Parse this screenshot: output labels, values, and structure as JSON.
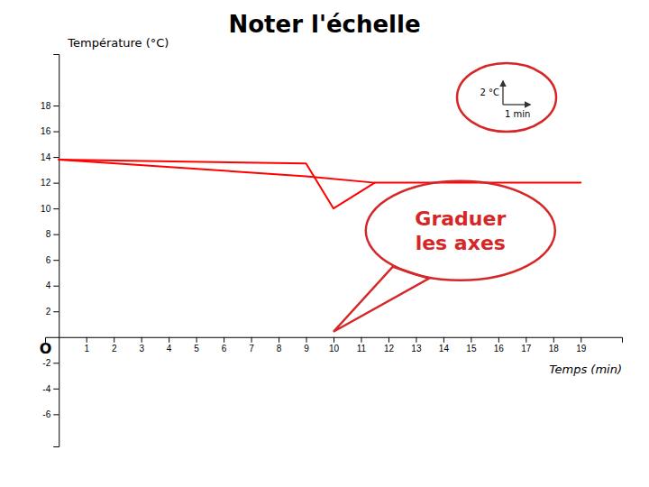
{
  "chart_data": {
    "type": "line",
    "title": "Noter l'échelle",
    "xlabel": "Temps (min)",
    "ylabel": "Température (°C)",
    "annotations": [
      "O",
      "Graduer\nles axes",
      "2 °C",
      "1 min"
    ],
    "series": [
      {
        "color": "#ff0000",
        "x": [
          0,
          9.0,
          10.0,
          11.5,
          19.0
        ],
        "values": [
          13.8,
          13.5,
          10.0,
          12.0,
          12.0
        ]
      },
      {
        "color": "#ff0000",
        "x": [
          0,
          9.0,
          11.5
        ],
        "values": [
          13.8,
          12.5,
          12.0
        ]
      }
    ],
    "xlim": [
      -0.5,
      20.5
    ],
    "ylim": [
      -8.5,
      22.0
    ],
    "xticks": [
      1,
      2,
      3,
      4,
      5,
      6,
      7,
      8,
      9,
      10,
      11,
      12,
      13,
      14,
      15,
      16,
      17,
      18,
      19
    ],
    "yticks": [
      -6,
      -4,
      -2,
      2,
      4,
      6,
      8,
      10,
      12,
      14,
      16,
      18
    ],
    "grid": false
  }
}
